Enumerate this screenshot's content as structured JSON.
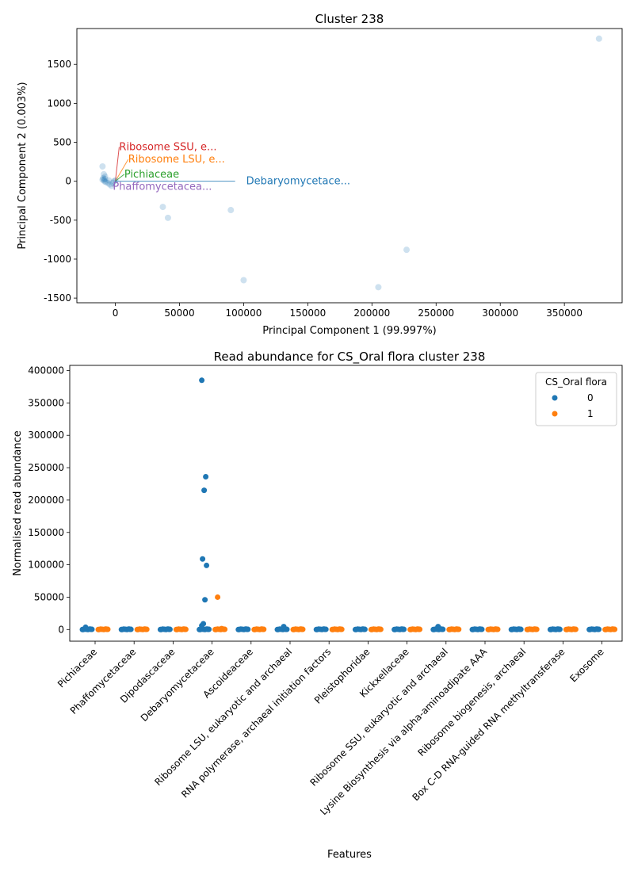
{
  "colors": {
    "series0": "#1f77b4",
    "series1": "#ff7f0e",
    "pca_point": "#1f77b4",
    "label_red": "#d62728",
    "label_orange": "#ff7f0e",
    "label_green": "#2ca02c",
    "label_purple": "#9467bd",
    "label_blue": "#1f77b4"
  },
  "chart_data": [
    {
      "type": "scatter",
      "title": "Cluster 238",
      "xlabel": "Principal Component 1 (99.997%)",
      "ylabel": "Principal Component 2 (0.003%)",
      "xlim": [
        -30000,
        395000
      ],
      "ylim": [
        -1560,
        1960
      ],
      "xticks": [
        0,
        50000,
        100000,
        150000,
        200000,
        250000,
        300000,
        350000
      ],
      "yticks": [
        -1500,
        -1000,
        -500,
        0,
        500,
        1000,
        1500
      ],
      "grid": false,
      "points": [
        {
          "x": 377000,
          "y": 1830
        },
        {
          "x": 227000,
          "y": -880
        },
        {
          "x": 205000,
          "y": -1360
        },
        {
          "x": 100000,
          "y": -1270
        },
        {
          "x": 90000,
          "y": -370
        },
        {
          "x": 41000,
          "y": -470
        },
        {
          "x": 37000,
          "y": -330
        },
        {
          "x": -10000,
          "y": 190
        },
        {
          "x": -9000,
          "y": 90
        },
        {
          "x": -9500,
          "y": 40
        },
        {
          "x": -10000,
          "y": 20
        },
        {
          "x": -8500,
          "y": 0
        },
        {
          "x": -8000,
          "y": 60
        },
        {
          "x": -7500,
          "y": -10
        },
        {
          "x": -6000,
          "y": -20
        },
        {
          "x": -5000,
          "y": 10
        },
        {
          "x": -4500,
          "y": -40
        },
        {
          "x": -3000,
          "y": -60
        },
        {
          "x": -2000,
          "y": -20
        },
        {
          "x": -1000,
          "y": 0
        },
        {
          "x": 0,
          "y": 10
        },
        {
          "x": -9000,
          "y": 20
        },
        {
          "x": -8000,
          "y": 30
        }
      ],
      "annotations": [
        {
          "text": "Ribosome SSU, e...",
          "color": "#d62728",
          "x": 3000,
          "y": 440,
          "px": 0,
          "py": 0
        },
        {
          "text": "Ribosome LSU, e...",
          "color": "#ff7f0e",
          "x": 10000,
          "y": 280,
          "px": 0,
          "py": 0
        },
        {
          "text": "Pichiaceae",
          "color": "#2ca02c",
          "x": 7000,
          "y": 90,
          "px": 0,
          "py": 0
        },
        {
          "text": "Phaffomycetacea...",
          "color": "#9467bd",
          "x": -2000,
          "y": -70,
          "px": 0,
          "py": 0
        },
        {
          "text": "Debaryomycetace...",
          "color": "#1f77b4",
          "x": 102000,
          "y": 0,
          "px": 0,
          "py": 0
        }
      ]
    },
    {
      "type": "scatter",
      "title": "Read abundance for CS_Oral flora cluster 238",
      "xlabel": "Features",
      "ylabel": "Normalised read abundance",
      "ylim": [
        -18000,
        408000
      ],
      "yticks": [
        0,
        50000,
        100000,
        150000,
        200000,
        250000,
        300000,
        350000,
        400000
      ],
      "grid": false,
      "legend": {
        "title": "CS_Oral flora",
        "placement": "top-right",
        "entries": [
          "0",
          "1"
        ]
      },
      "categories": [
        "Pichiaceae",
        "Phaffomycetaceae",
        "Dipodascaceae",
        "Debaryomycetaceae",
        "Ascoideaceae",
        "Ribosome LSU, eukaryotic and archaeal",
        "RNA polymerase, archaeal initiation factors",
        "Pleistophoridae",
        "Kickxellaceae",
        "Ribosome SSU, eukaryotic and archaeal",
        "Lysine Biosynthesis via alpha-aminoadipate AAA",
        "Ribosome biogenesis, archaeal",
        "Box C-D RNA-guided RNA methyltransferase",
        "Exosome"
      ],
      "series": [
        {
          "name": "0",
          "outliers": [
            {
              "category": 3,
              "value": 385000
            },
            {
              "category": 3,
              "value": 236000
            },
            {
              "category": 3,
              "value": 215000
            },
            {
              "category": 3,
              "value": 109000
            },
            {
              "category": 3,
              "value": 99000
            },
            {
              "category": 3,
              "value": 46000
            },
            {
              "category": 3,
              "value": 9000
            },
            {
              "category": 3,
              "value": 6000
            },
            {
              "category": 5,
              "value": 4500
            },
            {
              "category": 9,
              "value": 4500
            },
            {
              "category": 0,
              "value": 3500
            }
          ]
        },
        {
          "name": "1",
          "outliers": [
            {
              "category": 3,
              "value": 50000
            },
            {
              "category": 3,
              "value": 1500
            }
          ]
        }
      ]
    }
  ]
}
